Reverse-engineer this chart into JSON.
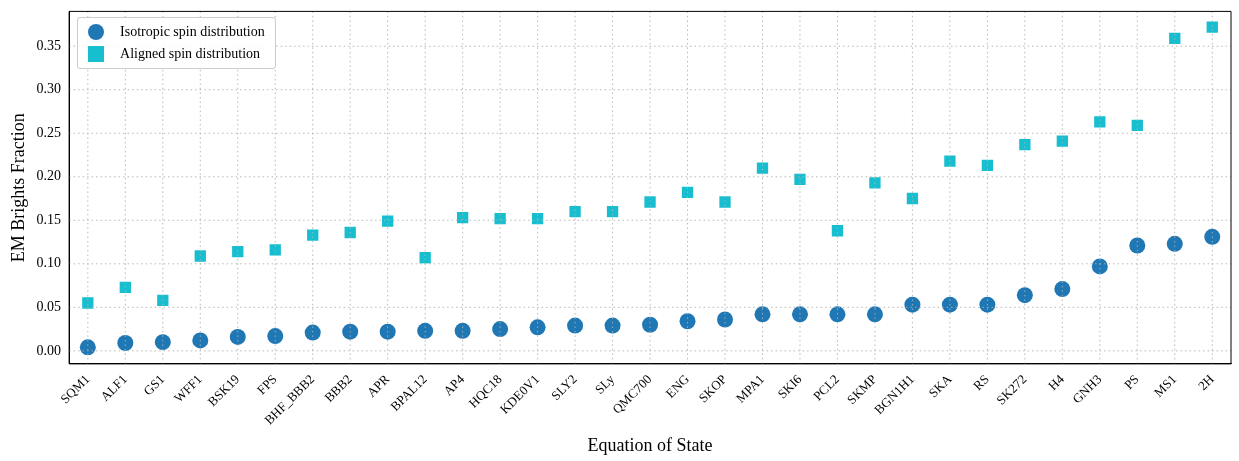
{
  "chart_data": {
    "type": "scatter",
    "xlabel": "Equation of State",
    "ylabel": "EM Brights Fraction",
    "categories": [
      "SQM1",
      "ALF1",
      "GS1",
      "WFF1",
      "BSK19",
      "FPS",
      "BHF_BBB2",
      "BBB2",
      "APR",
      "BPAL12",
      "AP4",
      "HQC18",
      "KDE0V1",
      "SLY2",
      "SLy",
      "QMC700",
      "ENG",
      "SKOP",
      "MPA1",
      "SKI6",
      "PCL2",
      "SKMP",
      "BGN1H1",
      "SKA",
      "RS",
      "SK272",
      "H4",
      "GNH3",
      "PS",
      "MS1",
      "2H"
    ],
    "series": [
      {
        "name": "Isotropic spin distribution",
        "color": "#1f77b4",
        "marker": "circle",
        "values": [
          0.004,
          0.009,
          0.01,
          0.012,
          0.016,
          0.017,
          0.021,
          0.022,
          0.022,
          0.023,
          0.023,
          0.025,
          0.027,
          0.029,
          0.029,
          0.03,
          0.034,
          0.036,
          0.042,
          0.042,
          0.042,
          0.042,
          0.053,
          0.053,
          0.053,
          0.064,
          0.071,
          0.097,
          0.121,
          0.123,
          0.131
        ]
      },
      {
        "name": "Aligned spin distribution",
        "color": "#17becf",
        "marker": "square",
        "values": [
          0.055,
          0.073,
          0.058,
          0.109,
          0.114,
          0.116,
          0.133,
          0.136,
          0.149,
          0.107,
          0.153,
          0.152,
          0.152,
          0.16,
          0.16,
          0.171,
          0.182,
          0.171,
          0.21,
          0.197,
          0.138,
          0.193,
          0.175,
          0.218,
          0.213,
          0.237,
          0.241,
          0.263,
          0.259,
          0.359,
          0.372
        ]
      }
    ],
    "ylim": [
      -0.015,
      0.39
    ],
    "yticks": [
      {
        "value": 0,
        "label": "0.00"
      },
      {
        "value": 0.05,
        "label": "0.05"
      },
      {
        "value": 0.1,
        "label": "0.10"
      },
      {
        "value": 0.15,
        "label": "0.15"
      },
      {
        "value": 0.2,
        "label": "0.20"
      },
      {
        "value": 0.25,
        "label": "0.25"
      },
      {
        "value": 0.3,
        "label": "0.30"
      },
      {
        "value": 0.35,
        "label": "0.35"
      }
    ],
    "grid": true,
    "legend": "top left"
  }
}
